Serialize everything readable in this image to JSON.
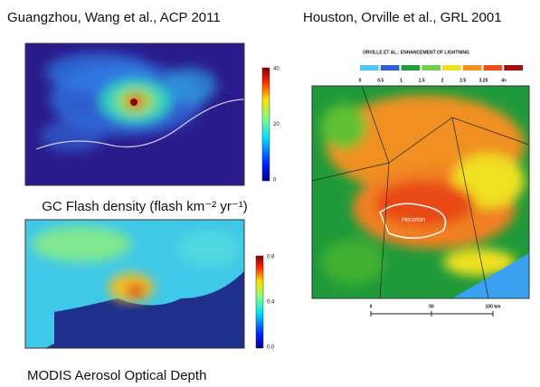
{
  "left_top": {
    "title": "Guangzhou, Wang et al., ACP 2011",
    "caption": "GC Flash density (flash km⁻² yr⁻¹)",
    "colorbar_ticks": [
      "40",
      "20",
      "0"
    ]
  },
  "left_bottom": {
    "caption": "MODIS Aerosol Optical Depth",
    "colorbar_ticks": [
      "0.8",
      "0.4",
      "0.0"
    ]
  },
  "right": {
    "title": "Houston, Orville et al., GRL 2001",
    "header": "ORVILLE ET AL.: ENHANCEMENT OF LIGHTNING",
    "legend_ticks": [
      "0",
      "0.5",
      "1",
      "1.5",
      "2",
      "2.5",
      "3.25",
      "4>"
    ],
    "scale_labels": [
      "0",
      "50",
      "100 km"
    ],
    "city_label": "Houston"
  }
}
